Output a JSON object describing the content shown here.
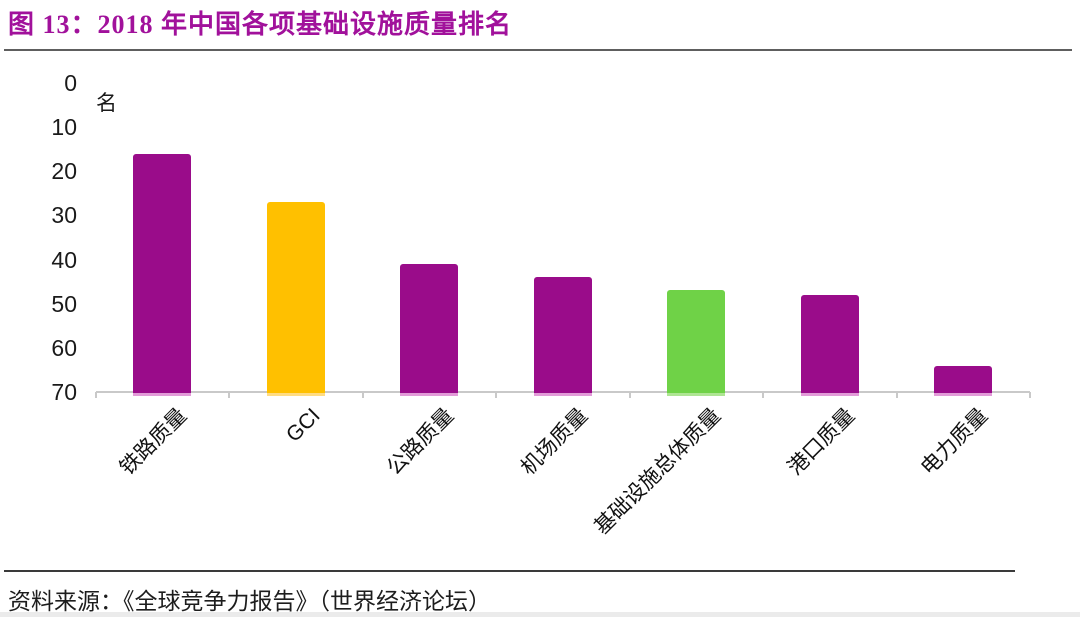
{
  "figure": {
    "title": "图 13：2018 年中国各项基础设施质量排名",
    "source": "资料来源：《全球竞争力报告》（世界经济论坛）"
  },
  "chart_data": {
    "type": "bar",
    "title": "2018 年中国各项基础设施质量排名",
    "categories": [
      "铁路质量",
      "GCI",
      "公路质量",
      "机场质量",
      "基础设施总体质量",
      "港口质量",
      "电力质量"
    ],
    "values": [
      16,
      27,
      41,
      44,
      47,
      48,
      64
    ],
    "xlabel": "",
    "ylabel": "名",
    "yticks": [
      0,
      10,
      20,
      30,
      40,
      50,
      60,
      70
    ],
    "ylim": [
      0,
      70
    ],
    "y_axis_inverted": true,
    "x_label_rotation_deg": 45,
    "grid": false,
    "legend": false,
    "bar_colors": [
      "#9A0C8A",
      "#FFC000",
      "#9A0C8A",
      "#9A0C8A",
      "#6FD247",
      "#9A0C8A",
      "#9A0C8A"
    ],
    "bar_edge_colors": [
      "#E29BD8",
      "#FFDC82",
      "#E29BD8",
      "#E29BD8",
      "#AEE593",
      "#E29BD8",
      "#E29BD8"
    ]
  },
  "colors": {
    "title_text": "#A1119B",
    "axis_line": "#C9C9C9",
    "tick_text": "#1A1A1A",
    "title_rule": "#5E5E5E",
    "footer_rule": "#3A3A3A"
  }
}
